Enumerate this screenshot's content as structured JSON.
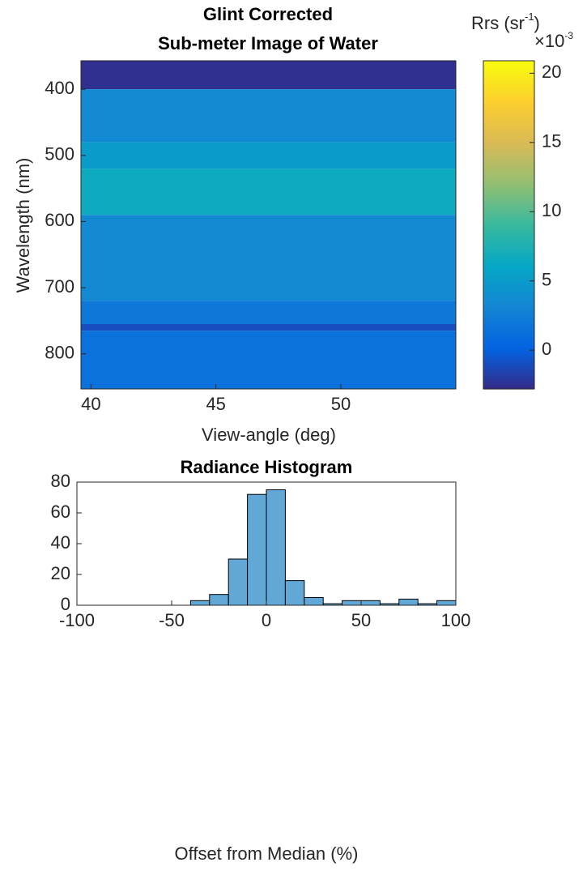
{
  "chart_data": [
    {
      "type": "heatmap",
      "title": [
        "Glint Corrected",
        "Sub-meter Image of Water"
      ],
      "xlabel": "View-angle (deg)",
      "ylabel": "Wavelength (nm)",
      "xlim": [
        39.6,
        54.6
      ],
      "xticks": [
        40,
        45,
        50
      ],
      "ylim": [
        357,
        853
      ],
      "yticks": [
        400,
        500,
        600,
        700,
        800
      ],
      "y_reversed": true,
      "y_edges": [
        357,
        400,
        480,
        520,
        590,
        720,
        755,
        765,
        853
      ],
      "values": [
        -2.5,
        3.5,
        5,
        6.5,
        3.5,
        2,
        -1,
        1.5
      ],
      "clim": [
        -2.8,
        20.9
      ],
      "cticks": [
        0,
        5,
        10,
        15,
        20
      ],
      "colorbar_label": "Rrs (sr",
      "colorbar_label_sup": "-1",
      "colorbar_label_end": ")",
      "colorbar_exponent": "×10",
      "colorbar_exponent_sup": "-3",
      "colormap": [
        "#352a87",
        "#0363e1",
        "#1485d4",
        "#06a7c6",
        "#38b99e",
        "#92bf73",
        "#d9ba56",
        "#fcce2e",
        "#f9fb0e"
      ]
    },
    {
      "type": "histogram",
      "title": "Radiance Histogram",
      "xlabel": "Offset from Median (%)",
      "xlim": [
        -100,
        100
      ],
      "xticks": [
        -100,
        -50,
        0,
        50,
        100
      ],
      "ylim": [
        0,
        80
      ],
      "yticks": [
        0,
        20,
        40,
        60,
        80
      ],
      "bins": [
        -40,
        -30,
        -20,
        -10,
        0,
        10,
        20,
        30,
        40,
        50,
        60,
        70,
        80,
        90,
        100
      ],
      "values": [
        3,
        7,
        30,
        72,
        75,
        16,
        5,
        1,
        3,
        3,
        1,
        4,
        1,
        3
      ],
      "color": "#62a8d7"
    }
  ]
}
